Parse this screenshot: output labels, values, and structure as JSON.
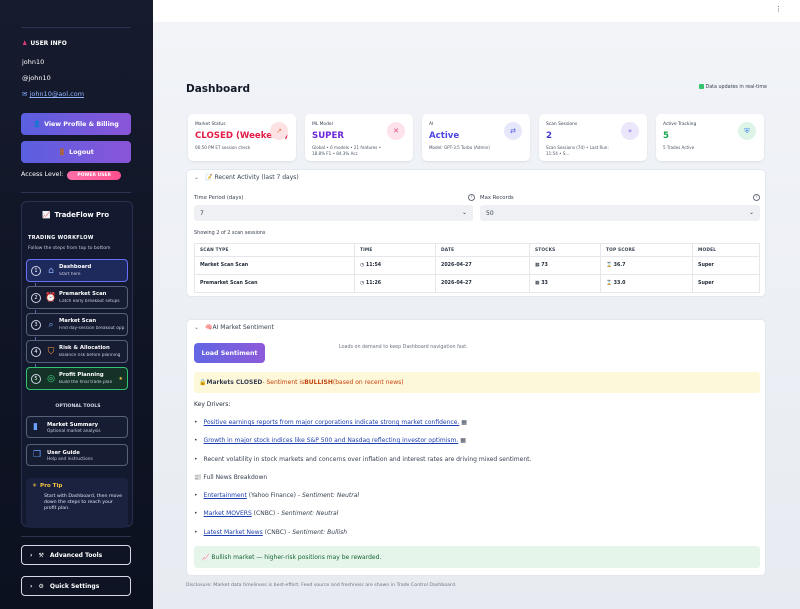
{
  "sidebar": {
    "user_info_heading": "USER INFO",
    "username": "john10",
    "handle": "@john10",
    "email": "john10@aol.com",
    "view_profile_label": "View Profile & Billing",
    "logout_label": "Logout",
    "access_label": "Access Level:",
    "access_badge": "POWER USER",
    "workflow": {
      "title": "TradeFlow Pro",
      "subtitle": "TRADING WORKFLOW",
      "note": "Follow the steps from top to bottom",
      "steps": [
        {
          "num": "1",
          "title": "Dashboard",
          "sub": "Start here",
          "icon": "home-icon"
        },
        {
          "num": "2",
          "title": "Premarket Scan",
          "sub": "Catch early breakout setups",
          "icon": "alarm-clock-icon"
        },
        {
          "num": "3",
          "title": "Market Scan",
          "sub": "Find day-session breakout opp...",
          "icon": "magnifier-icon"
        },
        {
          "num": "4",
          "title": "Risk & Allocation",
          "sub": "Balance risk before planning",
          "icon": "shield-icon"
        },
        {
          "num": "5",
          "title": "Profit Planning",
          "sub": "Build the final trade plan",
          "icon": "target-icon"
        }
      ],
      "optional_heading": "OPTIONAL TOOLS",
      "tools": [
        {
          "title": "Market Summary",
          "sub": "Optional market analysis",
          "icon": "bar-chart-icon"
        },
        {
          "title": "User Guide",
          "sub": "Help and instructions",
          "icon": "book-icon"
        }
      ],
      "tip_title": "Pro Tip",
      "tip_body": "Start with Dashboard, then move down the steps to reach your profit plan."
    },
    "advanced_tools_label": "Advanced Tools",
    "quick_settings_label": "Quick Settings"
  },
  "main": {
    "title": "Dashboard",
    "realtime": "Data updates in real-time",
    "cards": [
      {
        "label": "Market Status",
        "value": "CLOSED (Weekend)",
        "desc": "06:50 PM ET session check",
        "color": "#e11d48",
        "icon": "arrow-icon",
        "icon_bg": "#fde2e4"
      },
      {
        "label": "ML Model",
        "value": "SUPER",
        "desc": "Global • 6 models • 21 features • 18.8% F1 • 84.3% Acc",
        "color": "#6d28d9",
        "icon": "chip-icon",
        "icon_bg": "#fde2ec"
      },
      {
        "label": "AI",
        "value": "Active",
        "desc": "Model: GPT-3.5 Turbo (Admin)",
        "color": "#4f46e5",
        "icon": "swap-icon",
        "icon_bg": "#e6e7fb"
      },
      {
        "label": "Scan Sessions",
        "value": "2",
        "desc": "Scan Sessions (7d) • Last Run: 11:54 • S...",
        "color": "#4338ca",
        "icon": "pulse-icon",
        "icon_bg": "#ece6fb"
      },
      {
        "label": "Active Tracking",
        "value": "5",
        "desc": "5 Trades Active",
        "color": "#16a34a",
        "icon": "shield-check-icon",
        "icon_bg": "#dcf5e6"
      }
    ],
    "recent": {
      "header": "Recent Activity (last 7 days)",
      "time_period_label": "Time Period (days)",
      "time_period_value": "7",
      "max_records_label": "Max Records",
      "max_records_value": "50",
      "showing": "Showing 2 of 2 scan sessions",
      "columns": [
        "SCAN TYPE",
        "TIME",
        "DATE",
        "STOCKS",
        "TOP SCORE",
        "MODEL"
      ],
      "rows": [
        {
          "scan_type": "Market Scan Scan",
          "time": "11:54",
          "date": "2026-04-27",
          "stocks": "73",
          "top_score": "36.7",
          "model": "Super"
        },
        {
          "scan_type": "Premarket Scan Scan",
          "time": "11:26",
          "date": "2026-04-27",
          "stocks": "33",
          "top_score": "33.0",
          "model": "Super"
        }
      ]
    },
    "sentiment": {
      "header": "AI Market Sentiment",
      "load_button": "Load Sentiment",
      "load_note": "Loads on demand to keep Dashboard navigation fast.",
      "status_prefix": "Markets CLOSED",
      "status_mid": " - Sentiment is ",
      "status_value": "BULLISH",
      "status_suffix": " (based on recent news)",
      "key_drivers_label": "Key Drivers:",
      "drivers": [
        "Positive earnings reports from major corporations indicate strong market confidence.",
        "Growth in major stock indices like S&P 500 and Nasdaq reflecting investor optimism.",
        "Recent volatility in stock markets and concerns over inflation and interest rates are driving mixed sentiment."
      ],
      "news_label": "Full News Breakdown",
      "news": [
        {
          "title": "Entertainment",
          "source": "(Yahoo Finance)",
          "sentiment": "Sentiment: Neutral"
        },
        {
          "title": "Market MOVERS",
          "source": "(CNBC)",
          "sentiment": "Sentiment: Neutral"
        },
        {
          "title": "Latest Market News",
          "source": "(CNBC)",
          "sentiment": "Sentiment: Bullish"
        }
      ],
      "bullish_note": "Bullish market — higher-risk positions may be rewarded."
    },
    "disclosure": "Disclosure: Market data timeliness is best-effort. Feed source and freshness are shown in Trade Control Dashboard."
  }
}
